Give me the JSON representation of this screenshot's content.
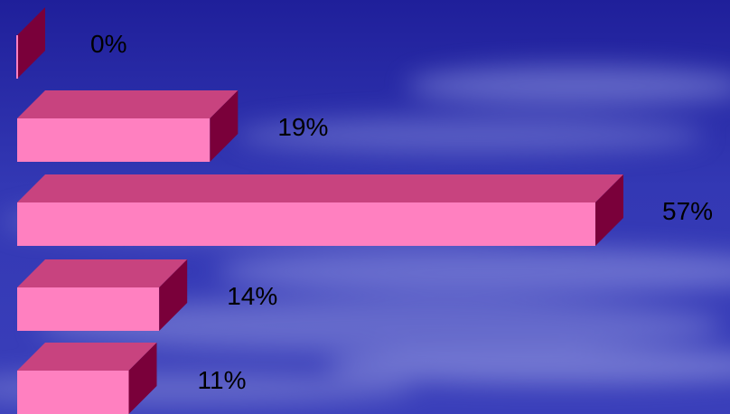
{
  "chart_data": {
    "type": "bar",
    "orientation": "horizontal",
    "style": "3d",
    "categories": [
      "",
      "",
      "",
      "",
      ""
    ],
    "values": [
      0,
      19,
      57,
      14,
      11
    ],
    "labels": [
      "0%",
      "19%",
      "57%",
      "14%",
      "11%"
    ],
    "unit": "%",
    "title": "",
    "xlabel": "",
    "ylabel": "",
    "xlim": [
      0,
      57
    ],
    "grid": false,
    "legend": "none"
  },
  "colors": {
    "background": "#2b2ea8",
    "bar_front": "#ff80c0",
    "bar_top": "#c8437f",
    "bar_side": "#7a003a",
    "label_text": "#000000"
  }
}
